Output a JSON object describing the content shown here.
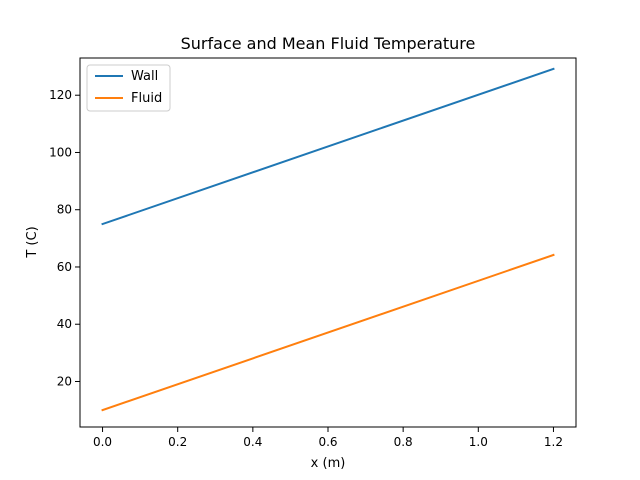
{
  "chart_data": {
    "type": "line",
    "title": "Surface and Mean Fluid Temperature",
    "xlabel": "x (m)",
    "ylabel": "T (C)",
    "xlim": [
      -0.06,
      1.26
    ],
    "ylim": [
      4.1,
      133.0
    ],
    "xticks": [
      0.0,
      0.2,
      0.4,
      0.6,
      0.8,
      1.0,
      1.2
    ],
    "xtick_labels": [
      "0.0",
      "0.2",
      "0.4",
      "0.6",
      "0.8",
      "1.0",
      "1.2"
    ],
    "yticks": [
      20,
      40,
      60,
      80,
      100,
      120
    ],
    "ytick_labels": [
      "20",
      "40",
      "60",
      "80",
      "100",
      "120"
    ],
    "grid": false,
    "legend_position": "top-left",
    "series": [
      {
        "name": "Wall",
        "color": "#1f77b4",
        "x": [
          0.0,
          1.2
        ],
        "y": [
          75.0,
          129.2
        ]
      },
      {
        "name": "Fluid",
        "color": "#ff7f0e",
        "x": [
          0.0,
          1.2
        ],
        "y": [
          10.0,
          64.2
        ]
      }
    ]
  }
}
